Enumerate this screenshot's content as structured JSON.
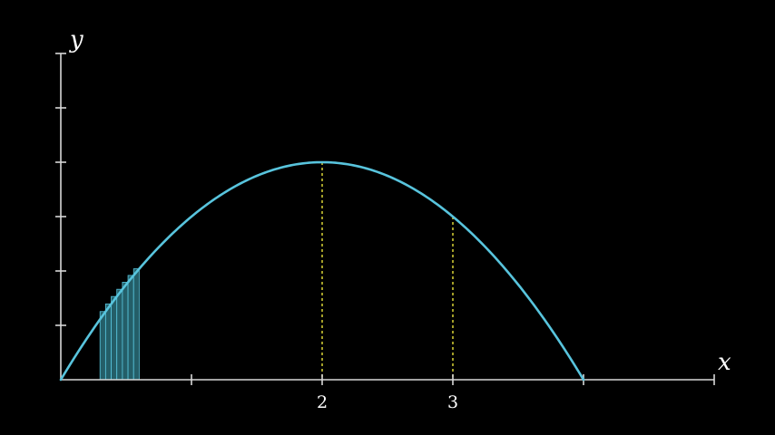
{
  "chart_data": {
    "type": "line",
    "title": "",
    "function": "y = x(4 - x)",
    "xlabel": "x",
    "ylabel": "y",
    "xlim": [
      0,
      5
    ],
    "ylim": [
      0,
      6
    ],
    "x_ticks": [
      0,
      1,
      2,
      3,
      4,
      5
    ],
    "y_ticks": [
      0,
      1,
      2,
      3,
      4,
      5,
      6
    ],
    "x_tick_labels": [
      {
        "x": 2,
        "label": "2"
      },
      {
        "x": 3,
        "label": "3"
      }
    ],
    "series": [
      {
        "name": "curve",
        "color": "#58c4dd",
        "x": [
          0,
          0.25,
          0.5,
          0.75,
          1,
          1.25,
          1.5,
          1.75,
          2,
          2.25,
          2.5,
          2.75,
          3,
          3.25,
          3.5,
          3.75,
          4
        ],
        "y": [
          0,
          0.9375,
          1.75,
          2.4375,
          3,
          3.4375,
          3.75,
          3.9375,
          4,
          3.9375,
          3.75,
          3.4375,
          3,
          2.4375,
          1.75,
          0.9375,
          0
        ]
      }
    ],
    "riemann_rectangles": {
      "color": "#2a6f7a",
      "x_start": 0.3,
      "x_end": 0.6,
      "count": 7
    },
    "vertical_guides": [
      {
        "x": 2,
        "y": 4,
        "color": "#e8e23a"
      },
      {
        "x": 3,
        "y": 3,
        "color": "#e8e23a"
      }
    ]
  }
}
